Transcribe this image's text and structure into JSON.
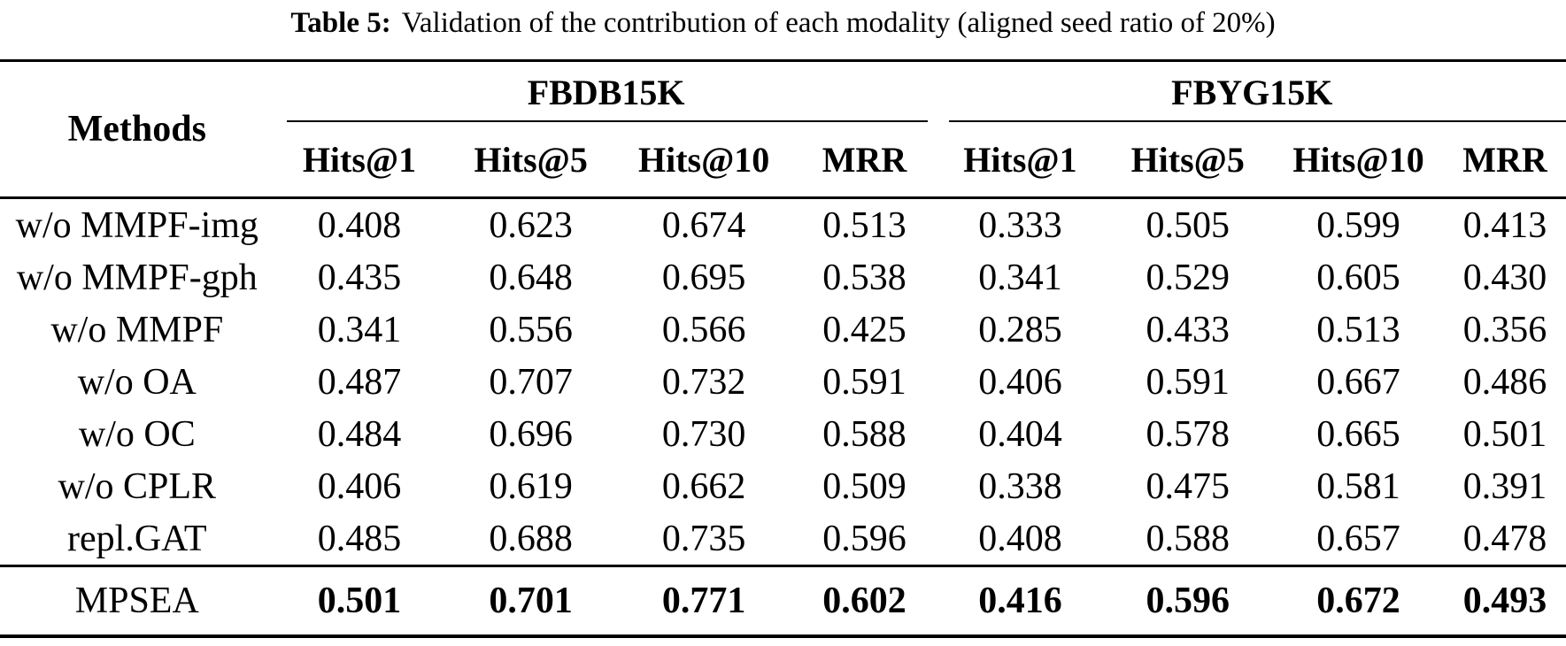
{
  "caption": {
    "label": "Table 5:",
    "text": "Validation of the contribution of each modality (aligned seed ratio of 20%)"
  },
  "table": {
    "methods_header": "Methods",
    "groups": [
      {
        "label": "FBDB15K",
        "columns": [
          "Hits@1",
          "Hits@5",
          "Hits@10",
          "MRR"
        ]
      },
      {
        "label": "FBYG15K",
        "columns": [
          "Hits@1",
          "Hits@5",
          "Hits@10",
          "MRR"
        ]
      }
    ],
    "rows": [
      {
        "method": "w/o MMPF-img",
        "values": [
          "0.408",
          "0.623",
          "0.674",
          "0.513",
          "0.333",
          "0.505",
          "0.599",
          "0.413"
        ]
      },
      {
        "method": "w/o MMPF-gph",
        "values": [
          "0.435",
          "0.648",
          "0.695",
          "0.538",
          "0.341",
          "0.529",
          "0.605",
          "0.430"
        ]
      },
      {
        "method": "w/o MMPF",
        "values": [
          "0.341",
          "0.556",
          "0.566",
          "0.425",
          "0.285",
          "0.433",
          "0.513",
          "0.356"
        ]
      },
      {
        "method": "w/o OA",
        "values": [
          "0.487",
          "0.707",
          "0.732",
          "0.591",
          "0.406",
          "0.591",
          "0.667",
          "0.486"
        ]
      },
      {
        "method": "w/o OC",
        "values": [
          "0.484",
          "0.696",
          "0.730",
          "0.588",
          "0.404",
          "0.578",
          "0.665",
          "0.501"
        ]
      },
      {
        "method": "w/o CPLR",
        "values": [
          "0.406",
          "0.619",
          "0.662",
          "0.509",
          "0.338",
          "0.475",
          "0.581",
          "0.391"
        ]
      },
      {
        "method": "repl.GAT",
        "values": [
          "0.485",
          "0.688",
          "0.735",
          "0.596",
          "0.408",
          "0.588",
          "0.657",
          "0.478"
        ]
      }
    ],
    "final_row": {
      "method": "MPSEA",
      "values": [
        "0.501",
        "0.701",
        "0.771",
        "0.602",
        "0.416",
        "0.596",
        "0.672",
        "0.493"
      ]
    }
  },
  "colors": {
    "text": "#000000",
    "background": "#ffffff",
    "rule": "#000000"
  }
}
